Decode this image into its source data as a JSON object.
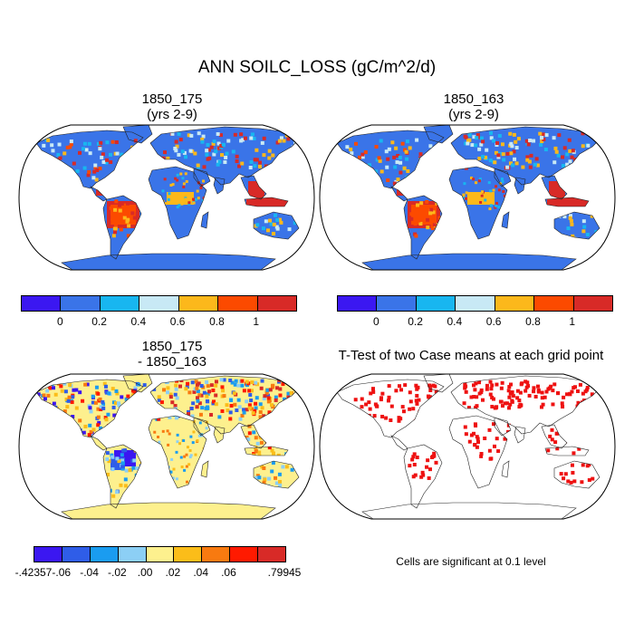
{
  "title": "ANN SOILC_LOSS (gC/m^2/d)",
  "panels": [
    {
      "id": "case1",
      "title_line1": "1850_175",
      "title_line2": "(yrs 2-9)",
      "base_color": "#3a74e8"
    },
    {
      "id": "case2",
      "title_line1": "1850_163",
      "title_line2": "(yrs 2-9)",
      "base_color": "#3a74e8"
    },
    {
      "id": "diff",
      "title_line1": "1850_175",
      "title_line2": "- 1850_163",
      "base_color": "#fdf08e"
    },
    {
      "id": "ttest",
      "title_line1": "T-Test of two Case means at each grid point",
      "base_color": "#ffffff"
    }
  ],
  "colorbar_top": {
    "colors": [
      "#3b17f1",
      "#3a74e8",
      "#18b6f0",
      "#c8e9f5",
      "#fcb81b",
      "#fc4a00",
      "#d82a27"
    ],
    "labels": [
      "0",
      "0.2",
      "0.4",
      "0.6",
      "0.8",
      "1"
    ]
  },
  "colorbar_diff": {
    "colors": [
      "#3b17f1",
      "#2f5de8",
      "#1a9cf0",
      "#8ccff5",
      "#fdf08e",
      "#fbbd19",
      "#f87a10",
      "#ff1a00",
      "#d82a27"
    ],
    "labels": [
      "-.42357",
      "-.06",
      "-.04",
      "-.02",
      ".00",
      ".02",
      ".04",
      ".06",
      ".79945"
    ]
  },
  "significance_note": "Cells are significant at 0.1 level",
  "significance_color": "#ee1111"
}
